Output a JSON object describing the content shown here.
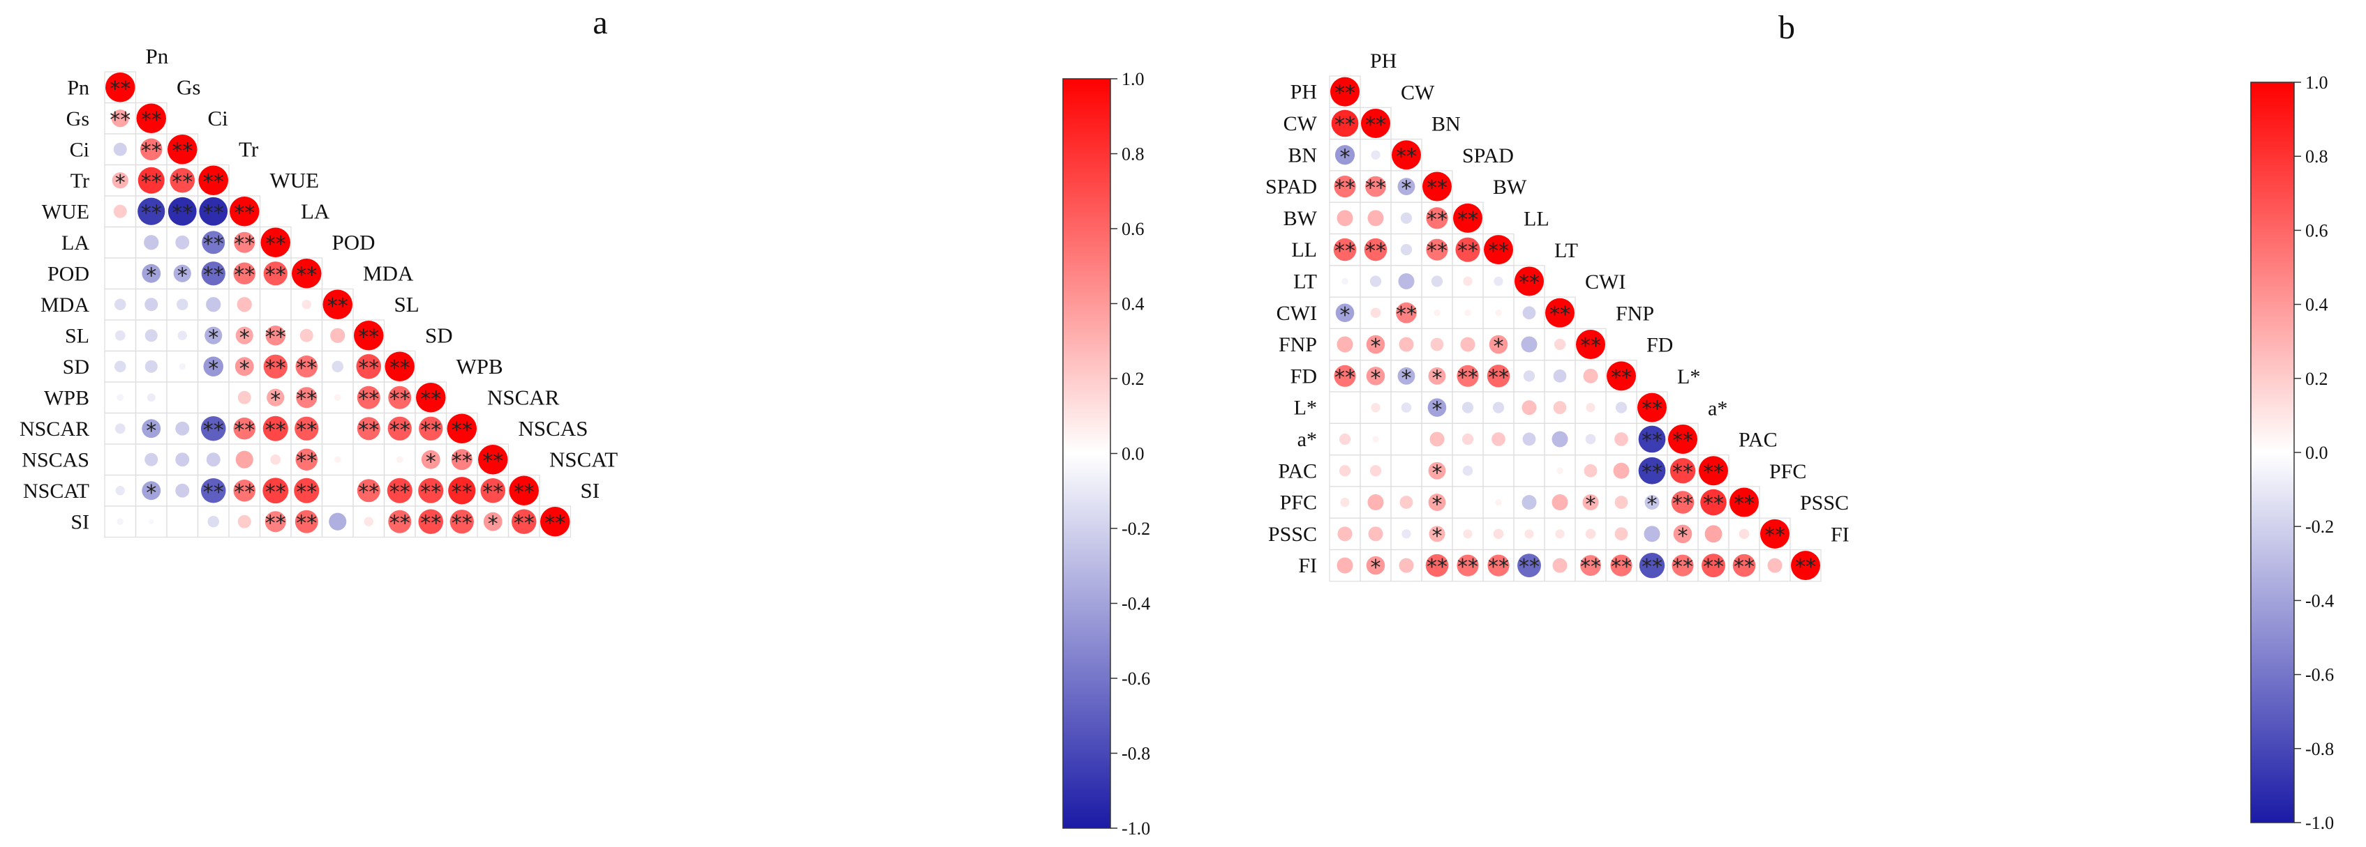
{
  "colors": {
    "positive": "#ff0000",
    "negative": "#1a1aa6",
    "neutral": "#ffffff",
    "grid": "#dddddd",
    "text": "#111111"
  },
  "chart_data": [
    {
      "panel": "a",
      "type": "heatmap",
      "subtype": "correlation-lower-triangle",
      "title": "a",
      "variables": [
        "Pn",
        "Gs",
        "Ci",
        "Tr",
        "WUE",
        "LA",
        "POD",
        "MDA",
        "SL",
        "SD",
        "WPB",
        "NSCAR",
        "NSCAS",
        "NSCAT",
        "SI"
      ],
      "matrix": [
        [
          1.0
        ],
        [
          0.35,
          1.0
        ],
        [
          -0.2,
          0.55,
          1.0
        ],
        [
          0.3,
          0.8,
          0.7,
          1.0
        ],
        [
          0.2,
          -0.85,
          -0.92,
          -0.92,
          1.0
        ],
        [
          null,
          -0.25,
          -0.22,
          -0.6,
          0.5,
          1.0
        ],
        [
          null,
          -0.4,
          -0.35,
          -0.65,
          0.55,
          0.65,
          1.0
        ],
        [
          -0.15,
          -0.2,
          -0.15,
          -0.25,
          0.25,
          null,
          0.1,
          1.0
        ],
        [
          -0.12,
          -0.18,
          -0.1,
          -0.35,
          0.35,
          0.45,
          0.2,
          0.25,
          1.0
        ],
        [
          -0.15,
          -0.18,
          -0.05,
          -0.45,
          0.4,
          0.65,
          0.55,
          -0.15,
          0.7,
          1.0
        ],
        [
          -0.05,
          -0.08,
          null,
          null,
          0.2,
          0.35,
          0.5,
          0.05,
          0.6,
          0.6,
          1.0
        ],
        [
          -0.12,
          -0.4,
          -0.22,
          -0.7,
          0.55,
          0.72,
          0.65,
          null,
          0.6,
          0.65,
          0.65,
          1.0
        ],
        [
          null,
          -0.2,
          -0.22,
          -0.22,
          0.35,
          0.12,
          0.55,
          0.05,
          null,
          0.05,
          0.4,
          0.5,
          1.0
        ],
        [
          -0.1,
          -0.4,
          -0.22,
          -0.7,
          0.55,
          0.75,
          0.72,
          null,
          0.6,
          0.72,
          0.72,
          0.85,
          0.7,
          1.0
        ],
        [
          -0.05,
          -0.03,
          null,
          -0.15,
          0.2,
          0.5,
          0.6,
          -0.35,
          0.1,
          0.6,
          0.7,
          0.65,
          0.4,
          0.7,
          1.0
        ]
      ],
      "significance": [
        [
          "**"
        ],
        [
          "**",
          "**"
        ],
        [
          "",
          "**",
          "**"
        ],
        [
          "*",
          "**",
          "**",
          "**"
        ],
        [
          "",
          "**",
          "**",
          "**",
          "**"
        ],
        [
          "",
          "",
          "",
          "**",
          "**",
          "**"
        ],
        [
          "",
          "*",
          "*",
          "**",
          "**",
          "**",
          "**"
        ],
        [
          "",
          "",
          "",
          "",
          "",
          "",
          "",
          "**"
        ],
        [
          "",
          "",
          "",
          "*",
          "*",
          "**",
          "",
          "",
          "**"
        ],
        [
          "",
          "",
          "",
          "*",
          "*",
          "**",
          "**",
          "",
          "**",
          "**"
        ],
        [
          "",
          "",
          "",
          "",
          "",
          "*",
          "**",
          "",
          "**",
          "**",
          "**"
        ],
        [
          "",
          "*",
          "",
          "**",
          "**",
          "**",
          "**",
          "",
          "**",
          "**",
          "**",
          "**"
        ],
        [
          "",
          "",
          "",
          "",
          "",
          "",
          "**",
          "",
          "",
          "",
          "*",
          "**",
          "**"
        ],
        [
          "",
          "*",
          "",
          "**",
          "**",
          "**",
          "**",
          "",
          "**",
          "**",
          "**",
          "**",
          "**",
          "**"
        ],
        [
          "",
          "",
          "",
          "",
          "",
          "**",
          "**",
          "",
          "",
          "**",
          "**",
          "**",
          "*",
          "**",
          "**"
        ]
      ],
      "colorbar": {
        "range": [
          -1.0,
          1.0
        ],
        "ticks": [
          "1.0",
          "0.8",
          "0.6",
          "0.4",
          "0.2",
          "0.0",
          "-0.2",
          "-0.4",
          "-0.6",
          "-0.8",
          "-1.0"
        ]
      }
    },
    {
      "panel": "b",
      "type": "heatmap",
      "subtype": "correlation-lower-triangle",
      "title": "b",
      "variables": [
        "PH",
        "CW",
        "BN",
        "SPAD",
        "BW",
        "LL",
        "LT",
        "CWI",
        "FNP",
        "FD",
        "L*",
        "a*",
        "PAC",
        "PFC",
        "PSSC",
        "FI"
      ],
      "matrix": [
        [
          1.0
        ],
        [
          0.85,
          1.0
        ],
        [
          -0.45,
          -0.1,
          1.0
        ],
        [
          0.55,
          0.5,
          -0.35,
          1.0
        ],
        [
          0.3,
          0.3,
          -0.15,
          0.55,
          1.0
        ],
        [
          0.6,
          0.6,
          -0.15,
          0.55,
          0.7,
          1.0
        ],
        [
          -0.05,
          -0.15,
          -0.3,
          -0.15,
          0.1,
          -0.1,
          1.0
        ],
        [
          -0.4,
          0.12,
          0.5,
          0.05,
          0.05,
          0.05,
          -0.2,
          1.0
        ],
        [
          0.3,
          0.4,
          0.25,
          0.2,
          0.25,
          0.4,
          -0.3,
          0.15,
          1.0
        ],
        [
          0.55,
          0.4,
          -0.35,
          0.35,
          0.55,
          0.6,
          -0.15,
          -0.2,
          0.25,
          1.0
        ],
        [
          null,
          0.1,
          -0.12,
          -0.4,
          -0.15,
          -0.15,
          0.25,
          0.2,
          0.1,
          -0.15,
          1.0
        ],
        [
          0.15,
          0.05,
          null,
          0.25,
          0.15,
          0.22,
          -0.2,
          -0.3,
          -0.12,
          0.22,
          -0.85,
          1.0
        ],
        [
          0.15,
          0.15,
          null,
          0.35,
          -0.12,
          null,
          null,
          0.05,
          0.2,
          0.3,
          -0.85,
          0.75,
          1.0
        ],
        [
          0.1,
          0.3,
          0.2,
          0.35,
          null,
          0.05,
          -0.25,
          0.3,
          0.3,
          0.2,
          -0.25,
          0.6,
          0.8,
          1.0
        ],
        [
          0.25,
          0.25,
          -0.1,
          0.3,
          0.1,
          0.12,
          0.1,
          0.1,
          0.12,
          0.2,
          -0.3,
          0.4,
          0.35,
          0.12,
          1.0
        ],
        [
          0.3,
          0.4,
          0.25,
          0.6,
          0.55,
          0.55,
          -0.65,
          0.25,
          0.5,
          0.55,
          -0.75,
          0.55,
          0.65,
          0.6,
          0.25,
          1.0
        ]
      ],
      "significance": [
        [
          "**"
        ],
        [
          "**",
          "**"
        ],
        [
          "*",
          "",
          "**"
        ],
        [
          "**",
          "**",
          "*",
          "**"
        ],
        [
          "",
          "",
          "",
          "**",
          "**"
        ],
        [
          "**",
          "**",
          "",
          "**",
          "**",
          "**"
        ],
        [
          "",
          "",
          "",
          "",
          "",
          "",
          "**"
        ],
        [
          "*",
          "",
          "**",
          "",
          "",
          "",
          "",
          "**"
        ],
        [
          "",
          "*",
          "",
          "",
          "",
          "*",
          "",
          "",
          "**"
        ],
        [
          "**",
          "*",
          "*",
          "*",
          "**",
          "**",
          "",
          "",
          "",
          "**"
        ],
        [
          "",
          "",
          "",
          "*",
          "",
          "",
          "",
          "",
          "",
          "",
          "**"
        ],
        [
          "",
          "",
          "",
          "",
          "",
          "",
          "",
          "",
          "",
          "",
          "**",
          "**"
        ],
        [
          "",
          "",
          "",
          "*",
          "",
          "",
          "",
          "",
          "",
          "",
          "**",
          "**",
          "**"
        ],
        [
          "",
          "",
          "",
          "*",
          "",
          "",
          "",
          "",
          "*",
          "",
          "*",
          "**",
          "**",
          "**"
        ],
        [
          "",
          "",
          "",
          "*",
          "",
          "",
          "",
          "",
          "",
          "",
          "",
          "*",
          "",
          "",
          "**"
        ],
        [
          "",
          "*",
          "",
          "**",
          "**",
          "**",
          "**",
          "",
          "**",
          "**",
          "**",
          "**",
          "**",
          "**",
          "",
          "**"
        ]
      ],
      "colorbar": {
        "range": [
          -1.0,
          1.0
        ],
        "ticks": [
          "1.0",
          "0.8",
          "0.6",
          "0.4",
          "0.2",
          "0.0",
          "-0.2",
          "-0.4",
          "-0.6",
          "-0.8",
          "-1.0"
        ]
      }
    }
  ]
}
